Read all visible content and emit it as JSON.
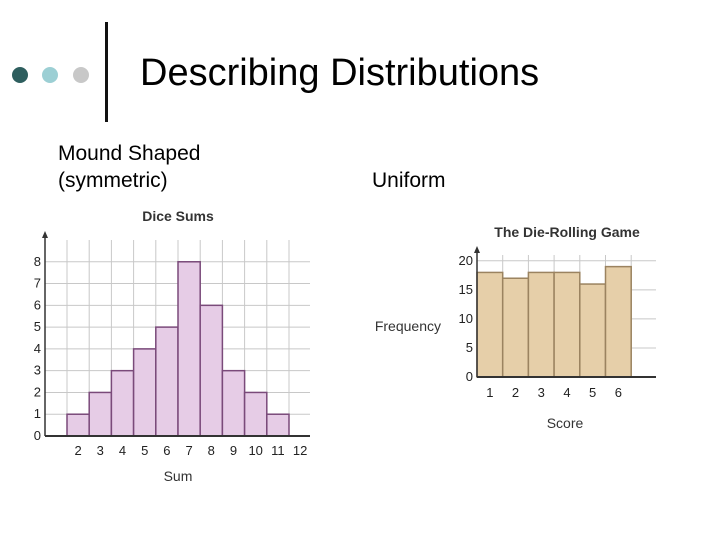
{
  "slide": {
    "title": "Describing Distributions",
    "left_label_line1": "Mound Shaped",
    "left_label_line2": "(symmetric)",
    "right_label": "Uniform"
  },
  "colors": {
    "dot_dark": "#2e5e5e",
    "dot_teal": "#9ccfd4",
    "dot_gray": "#c8c8c8",
    "left_bar_fill": "#e6cce6",
    "left_bar_stroke": "#7a4a7a",
    "right_bar_fill": "#e6cfa9",
    "right_bar_stroke": "#9b8360",
    "grid": "#c8c8c8"
  },
  "chart_data": [
    {
      "type": "bar",
      "title": "Dice Sums",
      "xlabel": "Sum",
      "ylabel": "",
      "categories": [
        "2",
        "3",
        "4",
        "5",
        "6",
        "7",
        "8",
        "9",
        "10",
        "11",
        "12"
      ],
      "values": [
        1,
        2,
        3,
        4,
        5,
        8,
        6,
        3,
        2,
        1,
        0
      ],
      "ylim": [
        0,
        9
      ],
      "yticks": [
        0,
        1,
        2,
        3,
        4,
        5,
        6,
        7,
        8
      ],
      "grid": true
    },
    {
      "type": "bar",
      "title": "The Die-Rolling Game",
      "xlabel": "Score",
      "ylabel": "Frequency",
      "categories": [
        "1",
        "2",
        "3",
        "4",
        "5",
        "6"
      ],
      "values": [
        18,
        17,
        18,
        18,
        16,
        19
      ],
      "ylim": [
        0,
        21
      ],
      "yticks": [
        0,
        5,
        10,
        15,
        20
      ],
      "grid": true
    }
  ]
}
